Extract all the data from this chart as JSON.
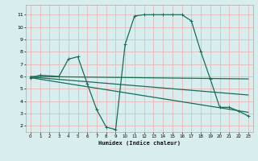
{
  "xlabel": "Humidex (Indice chaleur)",
  "background_color": "#d8eeee",
  "grid_color": "#e8b8b8",
  "line_color": "#1a6b5a",
  "xlim": [
    -0.5,
    23.5
  ],
  "ylim": [
    1.5,
    11.8
  ],
  "xticks": [
    0,
    1,
    2,
    3,
    4,
    5,
    6,
    7,
    8,
    9,
    10,
    11,
    12,
    13,
    14,
    15,
    16,
    17,
    18,
    19,
    20,
    21,
    22,
    23
  ],
  "yticks": [
    2,
    3,
    4,
    5,
    6,
    7,
    8,
    9,
    10,
    11
  ],
  "main_x": [
    0,
    1,
    3,
    4,
    5,
    6,
    7,
    8,
    9,
    10,
    11,
    12,
    13,
    14,
    15,
    16,
    17,
    18,
    19,
    20,
    21,
    22,
    23
  ],
  "main_y": [
    5.9,
    6.1,
    6.0,
    7.4,
    7.6,
    5.4,
    3.3,
    1.9,
    1.7,
    8.6,
    10.9,
    11.0,
    11.0,
    11.0,
    11.0,
    11.0,
    10.5,
    8.0,
    5.8,
    3.5,
    3.5,
    3.2,
    2.8
  ],
  "trend_lines": [
    {
      "x": [
        0,
        23
      ],
      "y": [
        6.0,
        5.8
      ]
    },
    {
      "x": [
        0,
        23
      ],
      "y": [
        5.9,
        3.1
      ]
    },
    {
      "x": [
        0,
        23
      ],
      "y": [
        5.95,
        4.5
      ]
    }
  ]
}
